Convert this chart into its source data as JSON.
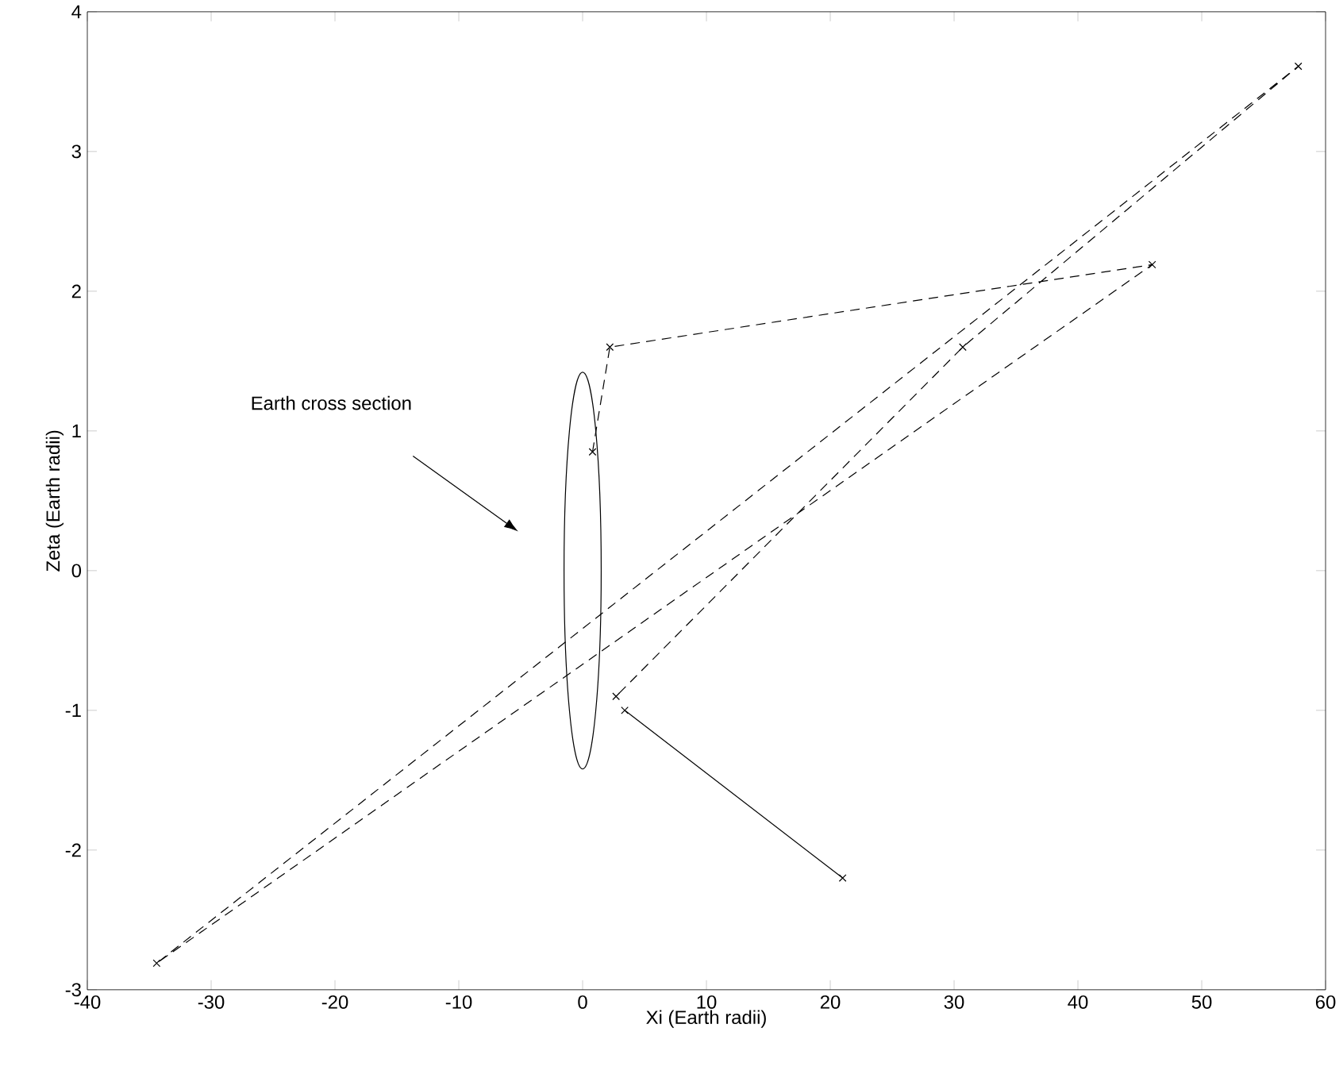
{
  "chart_data": {
    "type": "line",
    "xlabel": "Xi (Earth radii)",
    "ylabel": "Zeta (Earth radii)",
    "xlim": [
      -40,
      60
    ],
    "ylim": [
      -3,
      4
    ],
    "xticks": [
      -40,
      -30,
      -20,
      -10,
      0,
      10,
      20,
      30,
      40,
      50,
      60
    ],
    "yticks": [
      -3,
      -2,
      -1,
      0,
      1,
      2,
      3,
      4
    ],
    "grid": false,
    "annotations": [
      "Earth cross section"
    ],
    "series": [
      {
        "color": "#000000",
        "marker": "cross",
        "line_style": "dashed",
        "x": [
          0.8,
          2.2,
          46,
          -34.4,
          57.8,
          30.7,
          2.7
        ],
        "values": [
          0.85,
          1.6,
          2.19,
          -2.81,
          3.61,
          1.6,
          -0.9
        ]
      },
      {
        "color": "#000000",
        "marker": "cross",
        "line_style": "solid",
        "x": [
          3.4,
          21
        ],
        "values": [
          -1.0,
          -2.2
        ]
      }
    ]
  }
}
